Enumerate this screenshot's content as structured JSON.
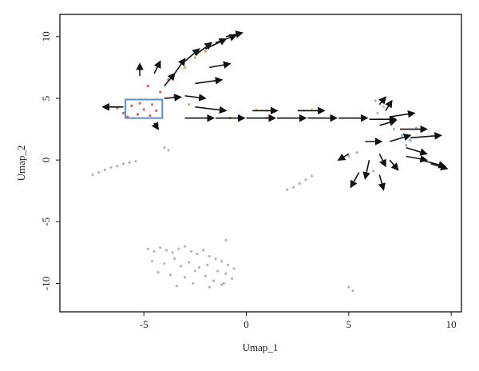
{
  "chart_data": {
    "type": "scatter",
    "x_label": "Umap_1",
    "y_label": "Umap_2",
    "xlim": [
      -9.1,
      10.5
    ],
    "ylim": [
      -12.3,
      11.8
    ],
    "xticks": [
      -5,
      0,
      5,
      10
    ],
    "yticks": [
      -10,
      -5,
      0,
      5,
      10
    ],
    "series": [
      {
        "color": "#b5b5b5",
        "x": [
          -7.5,
          -7.2,
          -6.9,
          -6.6,
          -6.3,
          -6.0,
          -5.7,
          -5.4,
          -4.0,
          -3.8,
          2.0,
          2.3,
          2.6,
          2.9,
          3.2,
          5.0,
          5.2,
          -4.8,
          -4.5,
          -4.2,
          -3.9,
          -3.6,
          -3.3,
          -3.0,
          -2.7,
          -2.4,
          -2.1,
          -1.8,
          -1.5,
          -1.2,
          -0.9,
          -0.6,
          -4.6,
          -4.0,
          -3.5,
          -3.2,
          -2.8,
          -2.3,
          -1.9,
          -1.4,
          -1.0,
          -0.7,
          -4.3,
          -3.7,
          -3.0,
          -2.5,
          -2.0,
          -1.6,
          -1.1,
          -3.4,
          -2.6,
          -1.8,
          -1.2,
          -1.0,
          6.3
        ],
        "y": [
          -1.2,
          -1.0,
          -0.8,
          -0.6,
          -0.5,
          -0.3,
          -0.2,
          -0.1,
          1.0,
          0.8,
          -2.4,
          -2.2,
          -1.9,
          -1.6,
          -1.3,
          -10.3,
          -10.6,
          -7.2,
          -7.4,
          -7.1,
          -7.3,
          -7.5,
          -7.2,
          -7.0,
          -7.4,
          -7.6,
          -7.3,
          -7.8,
          -8.0,
          -8.2,
          -8.5,
          -8.8,
          -8.2,
          -8.4,
          -8.0,
          -8.6,
          -8.3,
          -8.7,
          -8.5,
          -9.0,
          -9.2,
          -9.6,
          -9.1,
          -9.3,
          -9.5,
          -9.0,
          -9.4,
          -9.8,
          -10.0,
          -10.2,
          -10.0,
          -10.3,
          -10.1,
          -6.5,
          4.8
        ]
      },
      {
        "color": "#e8604a",
        "x": [
          -6.3,
          -6.0,
          -5.6,
          -5.3,
          -5.0,
          -4.7,
          -4.4,
          -5.8,
          -5.2,
          -4.6,
          -4.2,
          -4.8,
          -3.8,
          -3.5
        ],
        "y": [
          4.2,
          3.8,
          4.4,
          3.7,
          4.1,
          3.6,
          4.0,
          3.5,
          4.6,
          4.5,
          5.5,
          6.0,
          6.5,
          5.2
        ]
      },
      {
        "color": "#f0a050",
        "x": [
          -3.0,
          -2.5,
          -2.0,
          -1.6,
          -1.2,
          -2.8,
          -1.8,
          -0.8,
          1.0
        ],
        "y": [
          7.5,
          8.3,
          8.8,
          9.3,
          9.8,
          4.5,
          3.5,
          3.4,
          3.4
        ]
      },
      {
        "color": "#f2d36b",
        "x": [
          0.5,
          1.0,
          2.8,
          3.2,
          3.6,
          4.2
        ],
        "y": [
          4.1,
          4.0,
          4.0,
          4.1,
          3.9,
          3.6
        ]
      },
      {
        "color": "#8fb8de",
        "x": [
          5.0,
          5.4,
          6.2,
          7.2,
          7.6,
          8.0,
          8.3,
          7.8,
          8.6
        ],
        "y": [
          0.3,
          0.6,
          -0.9,
          2.5,
          2.0,
          1.6,
          2.6,
          1.2,
          0.2
        ]
      },
      {
        "color": "#b8c8a0",
        "x": [
          6.4,
          6.7
        ],
        "y": [
          3.8,
          4.3
        ]
      }
    ],
    "arrows": {
      "color": "#111111",
      "x": [
        -6,
        -5.2,
        -4.5,
        -4,
        -3.5,
        -3,
        -2.5,
        -2,
        -1.5,
        -1,
        -1.8,
        -2.5,
        -4,
        -3,
        -2.5,
        -4.5,
        -3,
        -1.5,
        0,
        0.3,
        1.5,
        2.5,
        3,
        4.5,
        6,
        6.5,
        6.8,
        7,
        7.5,
        8,
        6.5,
        7,
        6.5,
        7,
        7.8,
        8.5,
        9,
        6,
        5.5,
        6.5,
        5,
        5.8,
        7.8
      ],
      "y": [
        4.3,
        6.8,
        7,
        6,
        7,
        8,
        8.5,
        9,
        9.5,
        10,
        7.5,
        6.2,
        5,
        5.2,
        4.3,
        3,
        3.4,
        3.4,
        3.4,
        4,
        3.4,
        4,
        3.4,
        3.4,
        3.3,
        4.5,
        4,
        3.5,
        2.5,
        1.8,
        2.8,
        1.5,
        0.5,
        0,
        0.3,
        0,
        -0.3,
        0,
        -1,
        -1.2,
        0.5,
        1.5,
        1
      ],
      "dx": [
        -1,
        0,
        0.3,
        0.5,
        0.5,
        0.7,
        0.8,
        1,
        1,
        0.8,
        1,
        1.3,
        0.8,
        1,
        1.5,
        0.2,
        1.4,
        1.4,
        1.4,
        1.2,
        1.4,
        1.3,
        1.4,
        1.4,
        1.3,
        0.3,
        0.3,
        1.2,
        1.3,
        1.5,
        0.8,
        1,
        0.3,
        0.4,
        1,
        1.2,
        0.8,
        -0.2,
        -0.4,
        0.2,
        -0.5,
        0.8,
        1
      ],
      "dy": [
        0,
        1,
        1,
        1,
        1.2,
        1,
        1,
        0.8,
        0.6,
        0.3,
        0.3,
        0.3,
        0.1,
        -0.2,
        -0.3,
        -0.5,
        0,
        0,
        0,
        0,
        0,
        0,
        0,
        0,
        0,
        0.6,
        0.8,
        0.3,
        0,
        0.2,
        0.4,
        0.5,
        -1,
        -0.8,
        -0.3,
        -0.5,
        -0.4,
        -1.5,
        -1.2,
        -1.2,
        -0.5,
        0,
        -0.5
      ]
    },
    "highlight_box": {
      "xlim": [
        -5.9,
        -4.1
      ],
      "ylim": [
        3.4,
        4.9
      ],
      "color": "#5b8fd0"
    }
  }
}
